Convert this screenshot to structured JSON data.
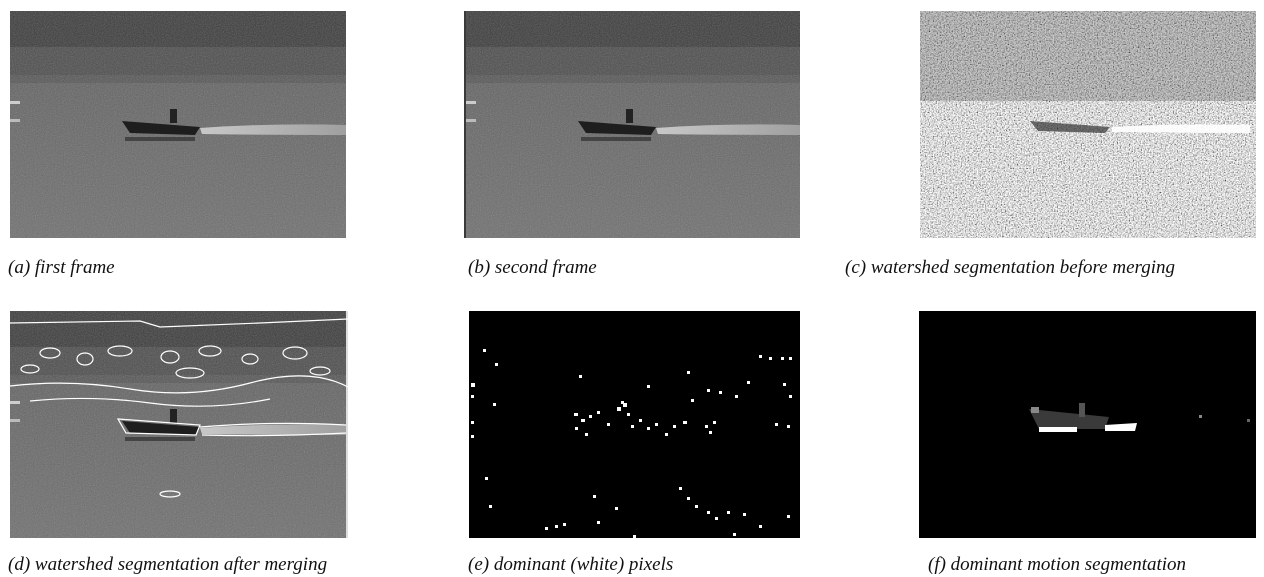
{
  "panels": [
    {
      "caption": "(a) first frame"
    },
    {
      "caption": "(b) second frame"
    },
    {
      "caption": "(c) watershed segmentation before merging"
    },
    {
      "caption": "(d) watershed segmentation after merging"
    },
    {
      "caption": "(e) dominant (white) pixels"
    },
    {
      "caption": "(f) dominant motion segmentation"
    }
  ]
}
